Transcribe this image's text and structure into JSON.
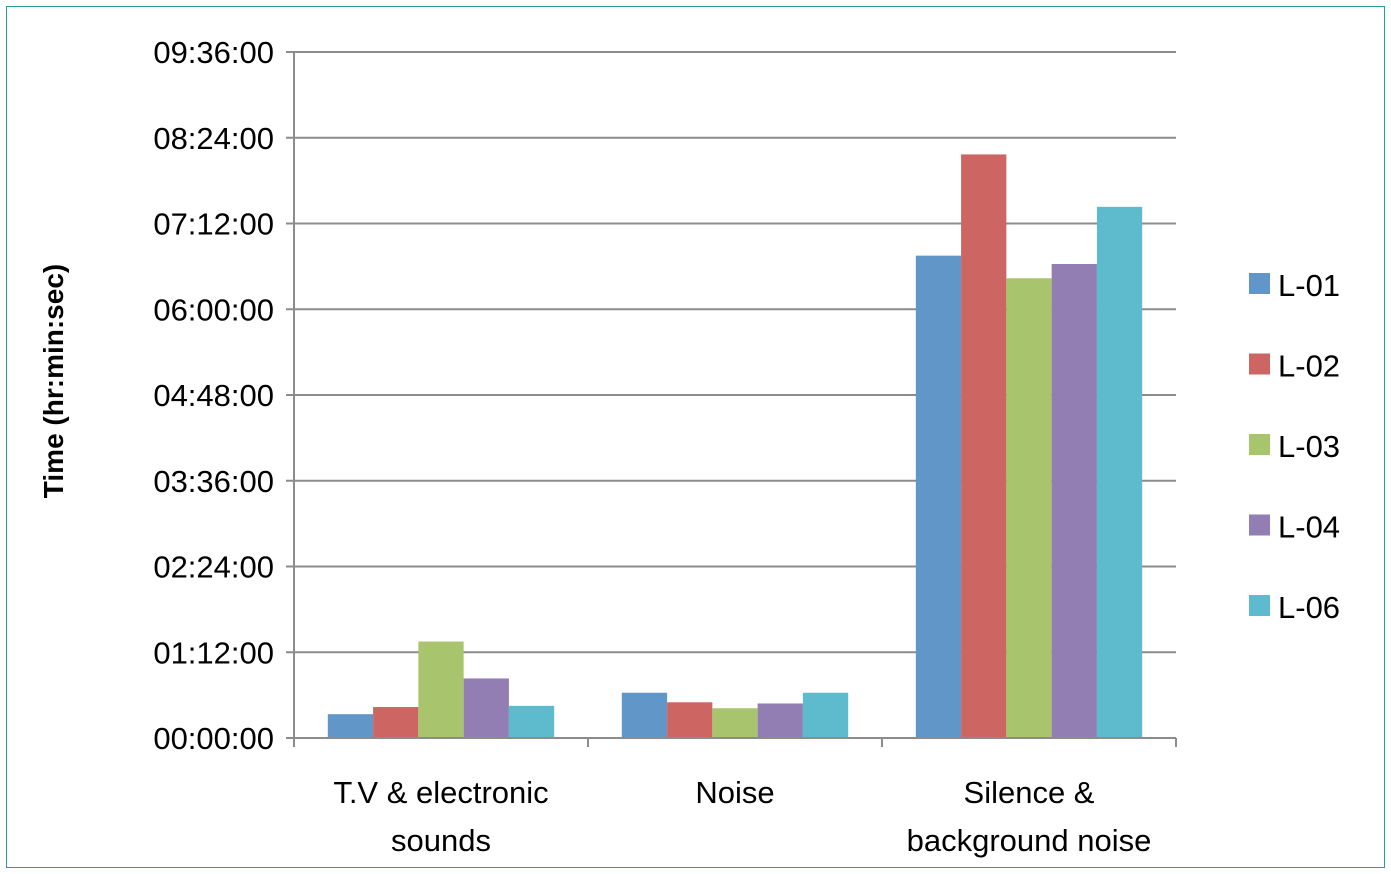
{
  "chart_data": {
    "type": "bar",
    "title": "",
    "xlabel": "",
    "ylabel": "Time (hr:min:sec)",
    "categories": [
      [
        "T.V & electronic",
        "sounds"
      ],
      [
        "Noise"
      ],
      [
        "Silence &",
        "background noise"
      ]
    ],
    "y_unit": "minutes",
    "ylim": [
      0,
      576
    ],
    "y_ticks": [
      {
        "value": 0,
        "label": "00:00:00"
      },
      {
        "value": 72,
        "label": "01:12:00"
      },
      {
        "value": 144,
        "label": "02:24:00"
      },
      {
        "value": 216,
        "label": "03:36:00"
      },
      {
        "value": 288,
        "label": "04:48:00"
      },
      {
        "value": 360,
        "label": "06:00:00"
      },
      {
        "value": 432,
        "label": "07:12:00"
      },
      {
        "value": 504,
        "label": "08:24:00"
      },
      {
        "value": 576,
        "label": "09:36:00"
      }
    ],
    "series": [
      {
        "name": "L-01",
        "color": "#6096c8",
        "values": [
          20,
          38,
          405
        ]
      },
      {
        "name": "L-02",
        "color": "#cd6662",
        "values": [
          26,
          30,
          490
        ]
      },
      {
        "name": "L-03",
        "color": "#a8c46c",
        "values": [
          81,
          25,
          386
        ]
      },
      {
        "name": "L-04",
        "color": "#937eb3",
        "values": [
          50,
          29,
          398
        ]
      },
      {
        "name": "L-06",
        "color": "#5ebbce",
        "values": [
          27,
          38,
          446
        ]
      }
    ],
    "grid": true,
    "legend_position": "right"
  }
}
